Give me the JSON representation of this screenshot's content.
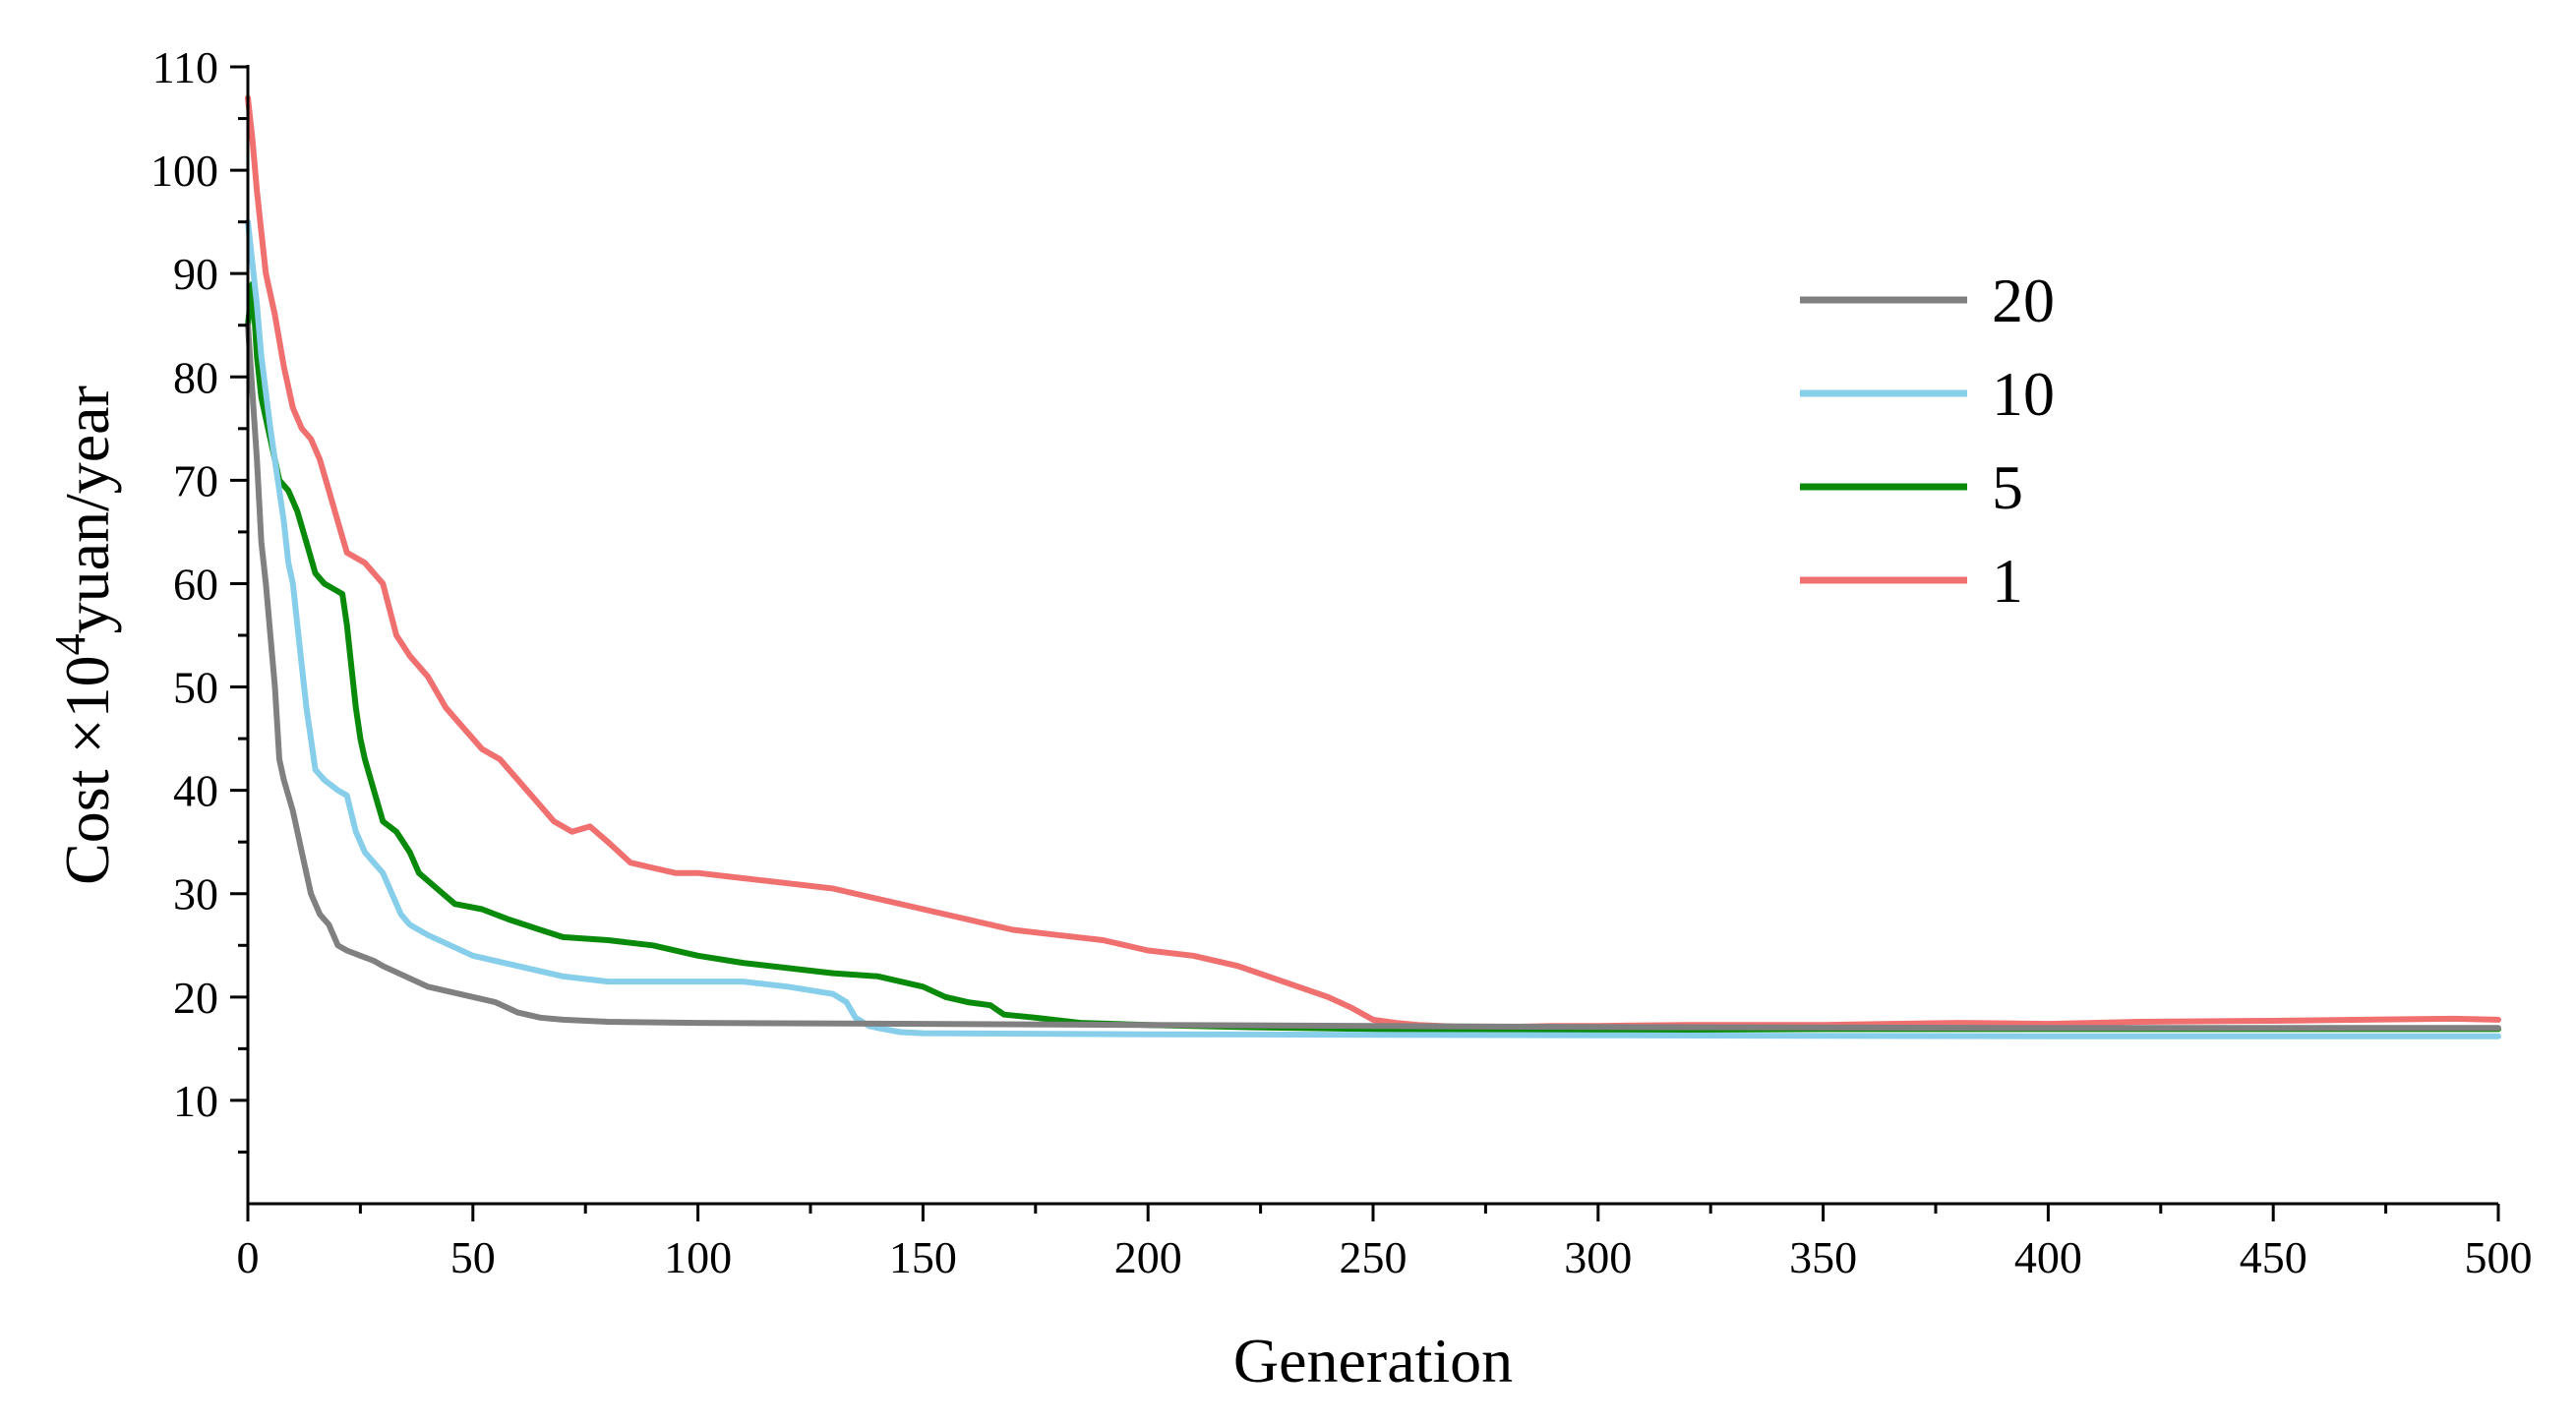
{
  "chart_data": {
    "type": "line",
    "title": "",
    "xlabel": "Generation",
    "ylabel_prefix": "Cost ×10",
    "ylabel_superscript": "4",
    "ylabel_suffix": "yuan/year",
    "xlim": [
      0,
      500
    ],
    "ylim": [
      0,
      110
    ],
    "x_ticks": [
      0,
      50,
      100,
      150,
      200,
      250,
      300,
      350,
      400,
      450,
      500
    ],
    "y_ticks": [
      10,
      20,
      30,
      40,
      50,
      60,
      70,
      80,
      90,
      100,
      110
    ],
    "x_tick_labels": [
      "0",
      "50",
      "100",
      "150",
      "200",
      "250",
      "300",
      "350",
      "400",
      "450",
      "500"
    ],
    "y_tick_labels": [
      "10",
      "20",
      "30",
      "40",
      "50",
      "60",
      "70",
      "80",
      "90",
      "100",
      "110"
    ],
    "legend_position": "upper-right",
    "series": [
      {
        "name": "20",
        "color": "#808080",
        "points": [
          [
            0,
            85
          ],
          [
            2,
            72
          ],
          [
            3,
            64
          ],
          [
            4,
            60
          ],
          [
            5,
            55
          ],
          [
            6,
            50
          ],
          [
            7,
            43
          ],
          [
            8,
            41
          ],
          [
            10,
            38
          ],
          [
            12,
            34
          ],
          [
            14,
            30
          ],
          [
            16,
            28
          ],
          [
            18,
            27
          ],
          [
            20,
            25
          ],
          [
            22,
            24.5
          ],
          [
            25,
            24
          ],
          [
            28,
            23.5
          ],
          [
            30,
            23
          ],
          [
            35,
            22
          ],
          [
            40,
            21
          ],
          [
            45,
            20.5
          ],
          [
            50,
            20
          ],
          [
            55,
            19.5
          ],
          [
            60,
            18.5
          ],
          [
            65,
            18
          ],
          [
            70,
            17.8
          ],
          [
            80,
            17.6
          ],
          [
            100,
            17.5
          ],
          [
            150,
            17.4
          ],
          [
            200,
            17.3
          ],
          [
            250,
            17.2
          ],
          [
            300,
            17.1
          ],
          [
            400,
            17.0
          ],
          [
            500,
            17.0
          ]
        ]
      },
      {
        "name": "10",
        "color": "#87ceeb",
        "points": [
          [
            0,
            95
          ],
          [
            2,
            87
          ],
          [
            3,
            82
          ],
          [
            5,
            75
          ],
          [
            7,
            69
          ],
          [
            8,
            66
          ],
          [
            9,
            62
          ],
          [
            10,
            60
          ],
          [
            11,
            56
          ],
          [
            12,
            52
          ],
          [
            13,
            48
          ],
          [
            14,
            45
          ],
          [
            15,
            42
          ],
          [
            17,
            41
          ],
          [
            20,
            40
          ],
          [
            22,
            39.5
          ],
          [
            24,
            36
          ],
          [
            26,
            34
          ],
          [
            28,
            33
          ],
          [
            30,
            32
          ],
          [
            32,
            30
          ],
          [
            34,
            28
          ],
          [
            36,
            27
          ],
          [
            40,
            26
          ],
          [
            45,
            25
          ],
          [
            50,
            24
          ],
          [
            60,
            23
          ],
          [
            70,
            22
          ],
          [
            80,
            21.5
          ],
          [
            90,
            21.5
          ],
          [
            100,
            21.5
          ],
          [
            110,
            21.5
          ],
          [
            120,
            21
          ],
          [
            130,
            20.3
          ],
          [
            133,
            19.5
          ],
          [
            135,
            18
          ],
          [
            138,
            17.2
          ],
          [
            140,
            17
          ],
          [
            145,
            16.6
          ],
          [
            150,
            16.5
          ],
          [
            200,
            16.4
          ],
          [
            300,
            16.3
          ],
          [
            400,
            16.2
          ],
          [
            500,
            16.2
          ]
        ]
      },
      {
        "name": "5",
        "color": "#0a8a0a",
        "points": [
          [
            0,
            85
          ],
          [
            1,
            89
          ],
          [
            2,
            82
          ],
          [
            3,
            78
          ],
          [
            5,
            74
          ],
          [
            7,
            70
          ],
          [
            9,
            69
          ],
          [
            11,
            67
          ],
          [
            13,
            64
          ],
          [
            15,
            61
          ],
          [
            17,
            60
          ],
          [
            19,
            59.5
          ],
          [
            21,
            59
          ],
          [
            22,
            56
          ],
          [
            23,
            52
          ],
          [
            24,
            48
          ],
          [
            25,
            45
          ],
          [
            26,
            43
          ],
          [
            28,
            40
          ],
          [
            30,
            37
          ],
          [
            33,
            36
          ],
          [
            36,
            34
          ],
          [
            38,
            32
          ],
          [
            42,
            30.5
          ],
          [
            46,
            29
          ],
          [
            52,
            28.5
          ],
          [
            58,
            27.5
          ],
          [
            65,
            26.5
          ],
          [
            70,
            25.8
          ],
          [
            80,
            25.5
          ],
          [
            90,
            25
          ],
          [
            100,
            24
          ],
          [
            110,
            23.3
          ],
          [
            120,
            22.8
          ],
          [
            130,
            22.3
          ],
          [
            140,
            22
          ],
          [
            150,
            21
          ],
          [
            155,
            20
          ],
          [
            160,
            19.5
          ],
          [
            165,
            19.2
          ],
          [
            168,
            18.3
          ],
          [
            175,
            18
          ],
          [
            185,
            17.5
          ],
          [
            200,
            17.3
          ],
          [
            220,
            17.1
          ],
          [
            250,
            16.9
          ],
          [
            270,
            16.7
          ],
          [
            300,
            16.8
          ],
          [
            350,
            16.9
          ],
          [
            400,
            16.9
          ],
          [
            450,
            16.9
          ],
          [
            500,
            16.9
          ]
        ]
      },
      {
        "name": "1",
        "color": "#f07070",
        "points": [
          [
            0,
            107
          ],
          [
            1,
            103
          ],
          [
            2,
            98
          ],
          [
            3,
            94
          ],
          [
            4,
            90
          ],
          [
            6,
            86
          ],
          [
            8,
            81
          ],
          [
            10,
            77
          ],
          [
            12,
            75
          ],
          [
            14,
            74
          ],
          [
            16,
            72
          ],
          [
            18,
            69
          ],
          [
            20,
            66
          ],
          [
            22,
            63
          ],
          [
            26,
            62
          ],
          [
            30,
            60
          ],
          [
            33,
            55
          ],
          [
            36,
            53
          ],
          [
            40,
            51
          ],
          [
            44,
            48
          ],
          [
            48,
            46
          ],
          [
            52,
            44
          ],
          [
            56,
            43
          ],
          [
            60,
            41
          ],
          [
            64,
            39
          ],
          [
            68,
            37
          ],
          [
            72,
            36
          ],
          [
            76,
            36.5
          ],
          [
            80,
            35
          ],
          [
            85,
            33
          ],
          [
            90,
            32.5
          ],
          [
            95,
            32
          ],
          [
            100,
            32
          ],
          [
            110,
            31.5
          ],
          [
            120,
            31
          ],
          [
            130,
            30.5
          ],
          [
            140,
            29.5
          ],
          [
            150,
            28.5
          ],
          [
            160,
            27.5
          ],
          [
            170,
            26.5
          ],
          [
            180,
            26
          ],
          [
            190,
            25.5
          ],
          [
            200,
            24.5
          ],
          [
            210,
            24
          ],
          [
            220,
            23
          ],
          [
            230,
            21.5
          ],
          [
            240,
            20
          ],
          [
            245,
            19
          ],
          [
            250,
            17.8
          ],
          [
            255,
            17.5
          ],
          [
            260,
            17.3
          ],
          [
            270,
            17.1
          ],
          [
            280,
            17.1
          ],
          [
            290,
            17.2
          ],
          [
            300,
            17.2
          ],
          [
            320,
            17.3
          ],
          [
            350,
            17.3
          ],
          [
            380,
            17.5
          ],
          [
            400,
            17.4
          ],
          [
            420,
            17.6
          ],
          [
            450,
            17.7
          ],
          [
            470,
            17.8
          ],
          [
            490,
            17.9
          ],
          [
            500,
            17.8
          ]
        ]
      }
    ]
  }
}
